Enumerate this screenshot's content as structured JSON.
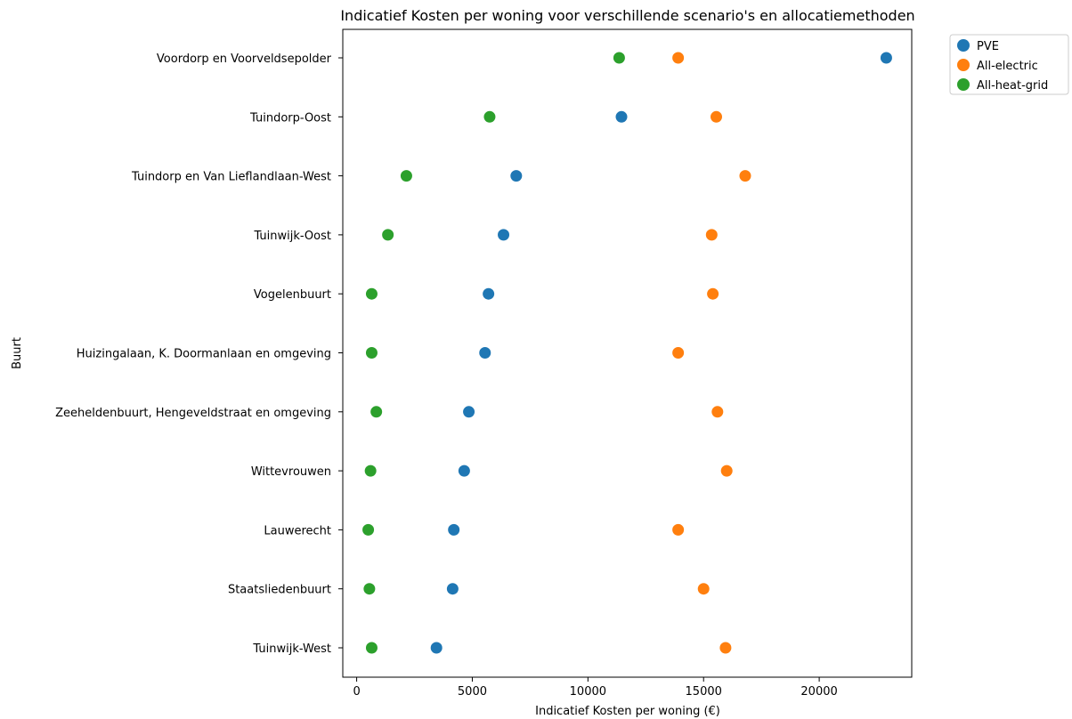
{
  "chart_data": {
    "type": "scatter",
    "title": "Indicatief Kosten per woning voor verschillende scenario's en allocatiemethoden",
    "xlabel": "Indicatief Kosten per woning (€)",
    "ylabel": "Buurt",
    "xlim": [
      -600,
      24000
    ],
    "x_ticks": [
      0,
      5000,
      10000,
      15000,
      20000
    ],
    "x_tick_labels": [
      "0",
      "5000",
      "10000",
      "15000",
      "20000"
    ],
    "grid": false,
    "legend_position": "outside top-right",
    "categories": [
      "Voordorp en Voorveldsepolder",
      "Tuindorp-Oost",
      "Tuindorp en Van Lieflandlaan-West",
      "Tuinwijk-Oost",
      "Vogelenbuurt",
      "Huizingalaan, K. Doormanlaan en omgeving",
      "Zeeheldenbuurt, Hengeveldstraat en omgeving",
      "Wittevrouwen",
      "Lauwerecht",
      "Staatsliedenbuurt",
      "Tuinwijk-West"
    ],
    "series": [
      {
        "name": "PVE",
        "color": "#1f77b4",
        "values": [
          22900,
          11450,
          6900,
          6350,
          5700,
          5550,
          4850,
          4650,
          4200,
          4150,
          3450
        ]
      },
      {
        "name": "All-electric",
        "color": "#ff7f0e",
        "values": [
          13900,
          15550,
          16800,
          15350,
          15400,
          13900,
          15600,
          16000,
          13900,
          15000,
          15950
        ]
      },
      {
        "name": "All-heat-grid",
        "color": "#2ca02c",
        "values": [
          11350,
          5750,
          2150,
          1350,
          650,
          650,
          850,
          600,
          500,
          550,
          650
        ]
      }
    ]
  }
}
